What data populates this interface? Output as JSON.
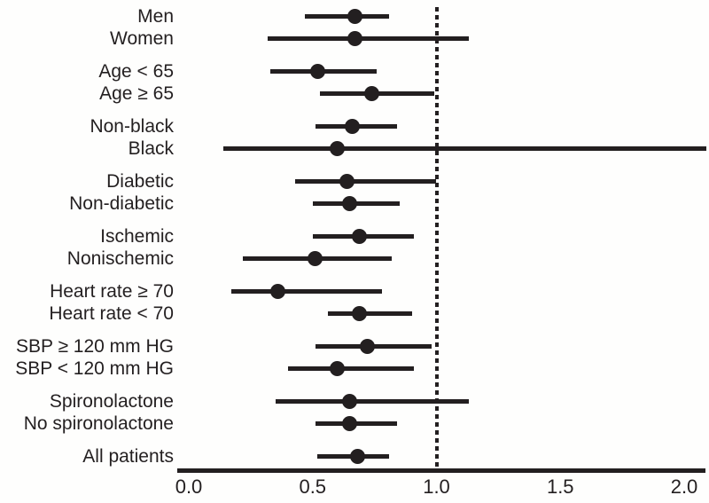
{
  "chart_data": {
    "type": "forest",
    "title": "",
    "xlabel": "",
    "ylabel": "",
    "x_axis": {
      "min": 0.0,
      "max": 2.0,
      "tick_values": [
        0.0,
        0.5,
        1.0,
        1.5,
        2.0
      ],
      "tick_labels": [
        "0.0",
        "0.5",
        "1.0",
        "1.5",
        "2.0"
      ]
    },
    "reference_line_value": 1.0,
    "reference_line_style": "dotted",
    "ink_color": "#231f20",
    "groups": [
      {
        "rows": [
          {
            "label": "Men",
            "estimate": 0.67,
            "ci_low": 0.47,
            "ci_high": 0.81
          },
          {
            "label": "Women",
            "estimate": 0.67,
            "ci_low": 0.32,
            "ci_high": 1.13
          }
        ]
      },
      {
        "rows": [
          {
            "label": "Age < 65",
            "estimate": 0.52,
            "ci_low": 0.33,
            "ci_high": 0.76
          },
          {
            "label": "Age ≥ 65",
            "estimate": 0.74,
            "ci_low": 0.53,
            "ci_high": 0.99
          }
        ]
      },
      {
        "rows": [
          {
            "label": "Non-black",
            "estimate": 0.66,
            "ci_low": 0.51,
            "ci_high": 0.84
          },
          {
            "label": "Black",
            "estimate": 0.6,
            "ci_low": 0.14,
            "ci_high": 2.09
          }
        ]
      },
      {
        "rows": [
          {
            "label": "Diabetic",
            "estimate": 0.64,
            "ci_low": 0.43,
            "ci_high": 1.0
          },
          {
            "label": "Non-diabetic",
            "estimate": 0.65,
            "ci_low": 0.5,
            "ci_high": 0.85
          }
        ]
      },
      {
        "rows": [
          {
            "label": "Ischemic",
            "estimate": 0.69,
            "ci_low": 0.5,
            "ci_high": 0.91
          },
          {
            "label": "Nonischemic",
            "estimate": 0.51,
            "ci_low": 0.22,
            "ci_high": 0.82
          }
        ]
      },
      {
        "rows": [
          {
            "label": "Heart rate ≥ 70",
            "estimate": 0.36,
            "ci_low": 0.17,
            "ci_high": 0.78
          },
          {
            "label": "Heart rate < 70",
            "estimate": 0.69,
            "ci_low": 0.56,
            "ci_high": 0.9
          }
        ]
      },
      {
        "rows": [
          {
            "label": "SBP ≥ 120 mm HG",
            "estimate": 0.72,
            "ci_low": 0.51,
            "ci_high": 0.98
          },
          {
            "label": "SBP < 120 mm HG",
            "estimate": 0.6,
            "ci_low": 0.4,
            "ci_high": 0.91
          }
        ]
      },
      {
        "rows": [
          {
            "label": "Spironolactone",
            "estimate": 0.65,
            "ci_low": 0.35,
            "ci_high": 1.13
          },
          {
            "label": "No spironolactone",
            "estimate": 0.65,
            "ci_low": 0.51,
            "ci_high": 0.84
          }
        ]
      },
      {
        "rows": [
          {
            "label": "All patients",
            "estimate": 0.68,
            "ci_low": 0.52,
            "ci_high": 0.81
          }
        ]
      }
    ]
  }
}
